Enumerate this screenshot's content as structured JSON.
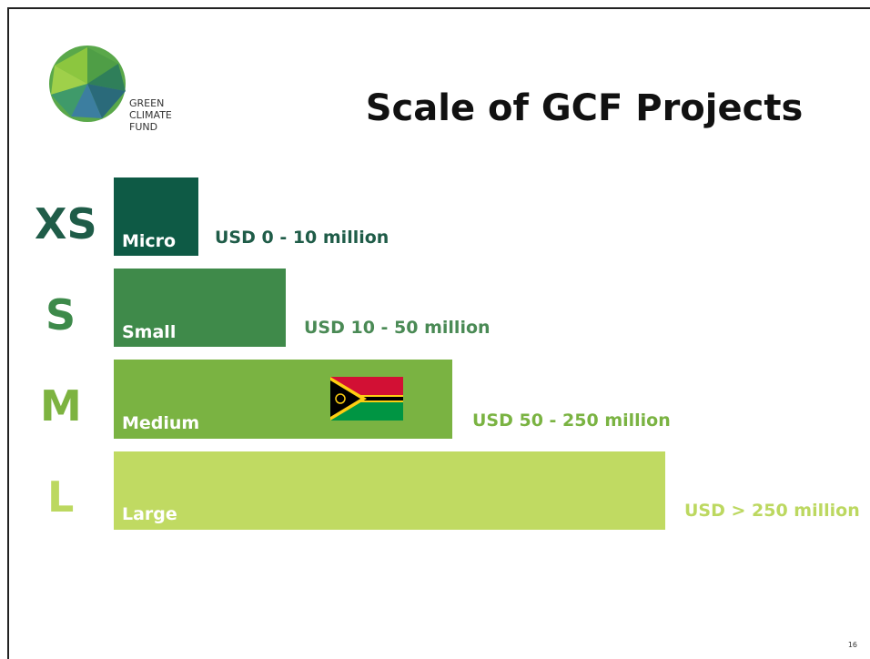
{
  "logo": {
    "lines": [
      "GREEN",
      "CLIMATE",
      "FUND"
    ]
  },
  "title": "Scale of GCF Projects",
  "rows": [
    {
      "size": "XS",
      "name": "Micro",
      "range": "USD 0 - 10 million"
    },
    {
      "size": "S",
      "name": "Small",
      "range": "USD 10 - 50 million"
    },
    {
      "size": "M",
      "name": "Medium",
      "range": "USD 50 - 250 million"
    },
    {
      "size": "L",
      "name": "Large",
      "range": "USD > 250 million"
    }
  ],
  "page_number": "16"
}
